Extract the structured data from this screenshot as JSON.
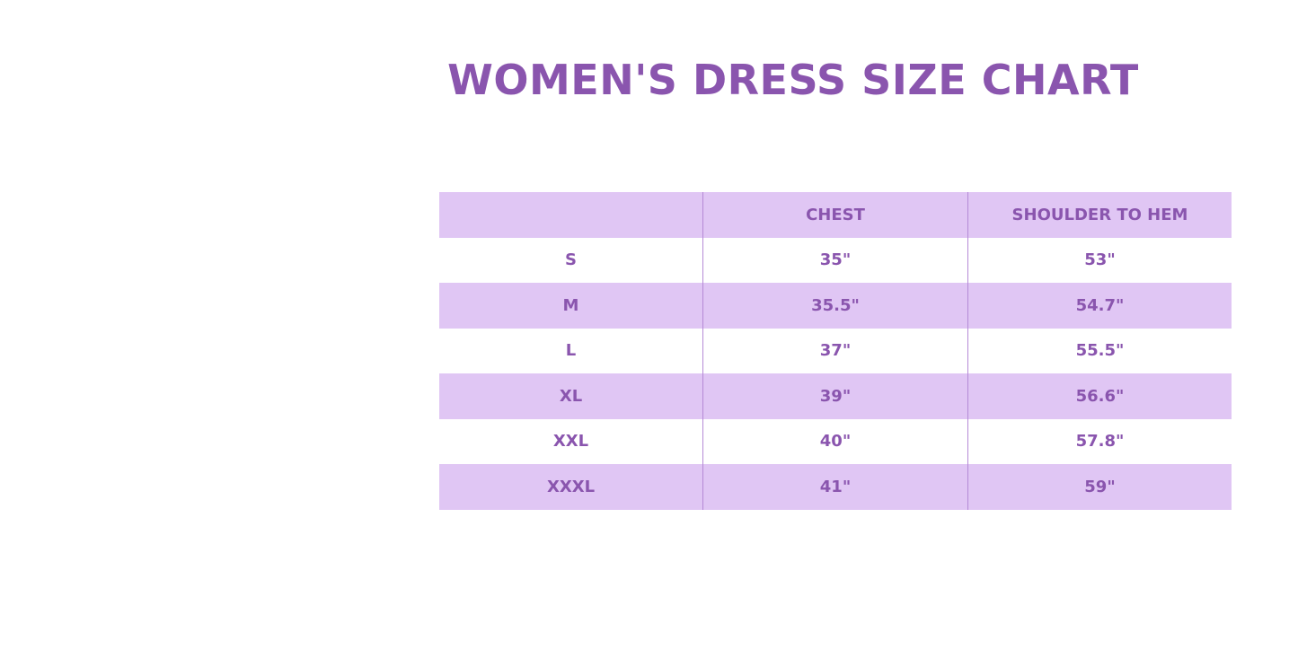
{
  "title": "WOMEN'S DRESS SIZE CHART",
  "colors": {
    "accent_text": "#8a55ae",
    "row_shade": "#e0c6f4",
    "divider": "#b58ad6"
  },
  "table": {
    "headers": [
      "",
      "CHEST",
      "SHOULDER TO HEM"
    ],
    "rows": [
      [
        "S",
        "35\"",
        "53\""
      ],
      [
        "M",
        "35.5\"",
        "54.7\""
      ],
      [
        "L",
        "37\"",
        "55.5\""
      ],
      [
        "XL",
        "39\"",
        "56.6\""
      ],
      [
        "XXL",
        "40\"",
        "57.8\""
      ],
      [
        "XXXL",
        "41\"",
        "59\""
      ]
    ]
  }
}
